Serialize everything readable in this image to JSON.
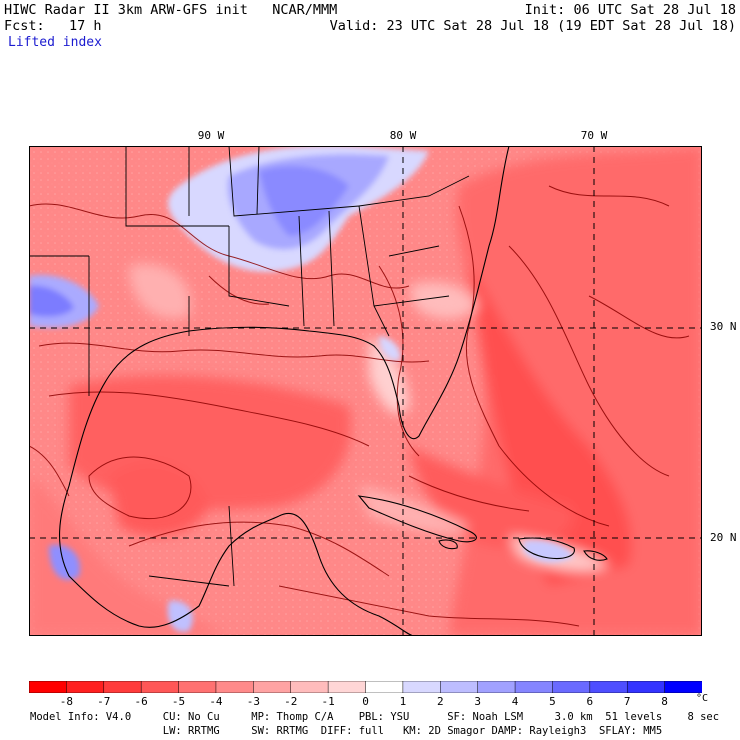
{
  "header": {
    "left_line1": "HIWC Radar II 3km ARW-GFS init   NCAR/MMM",
    "left_line2": "Fcst:   17 h",
    "right_line1": "Init: 06 UTC Sat 28 Jul 18",
    "right_line2": "Valid: 23 UTC Sat 28 Jul 18 (19 EDT Sat 28 Jul 18)",
    "field": "Lifted index"
  },
  "map": {
    "lon_labels": [
      "90 W",
      "80 W",
      "70 W"
    ],
    "lat_labels": [
      "30 N",
      "20 N"
    ],
    "region": "Southeastern US, Gulf of Mexico, Caribbean, western Atlantic"
  },
  "colorbar": {
    "ticks": [
      "-8",
      "-7",
      "-6",
      "-5",
      "-4",
      "-3",
      "-2",
      "-1",
      "0",
      "1",
      "2",
      "3",
      "4",
      "5",
      "6",
      "7",
      "8"
    ],
    "unit": "°C",
    "colors": [
      "#ff0000",
      "#ff1f1f",
      "#ff3b3b",
      "#ff5757",
      "#ff7171",
      "#ff8a8a",
      "#ffa3a3",
      "#ffbcbc",
      "#ffd6d6",
      "#ffffff",
      "#d8d8ff",
      "#bdbdff",
      "#a1a1ff",
      "#8585ff",
      "#6a6aff",
      "#4e4eff",
      "#3333ff",
      "#0000ff"
    ]
  },
  "footer": {
    "line1": "Model Info: V4.0     CU: No Cu     MP: Thomp C/A    PBL: YSU      SF: Noah LSM     3.0 km  51 levels    8 sec",
    "line2": "                     LW: RRTMG     SW: RRTMG  DIFF: full   KM: 2D Smagor DAMP: Rayleigh3  SFLAY: MM5"
  }
}
